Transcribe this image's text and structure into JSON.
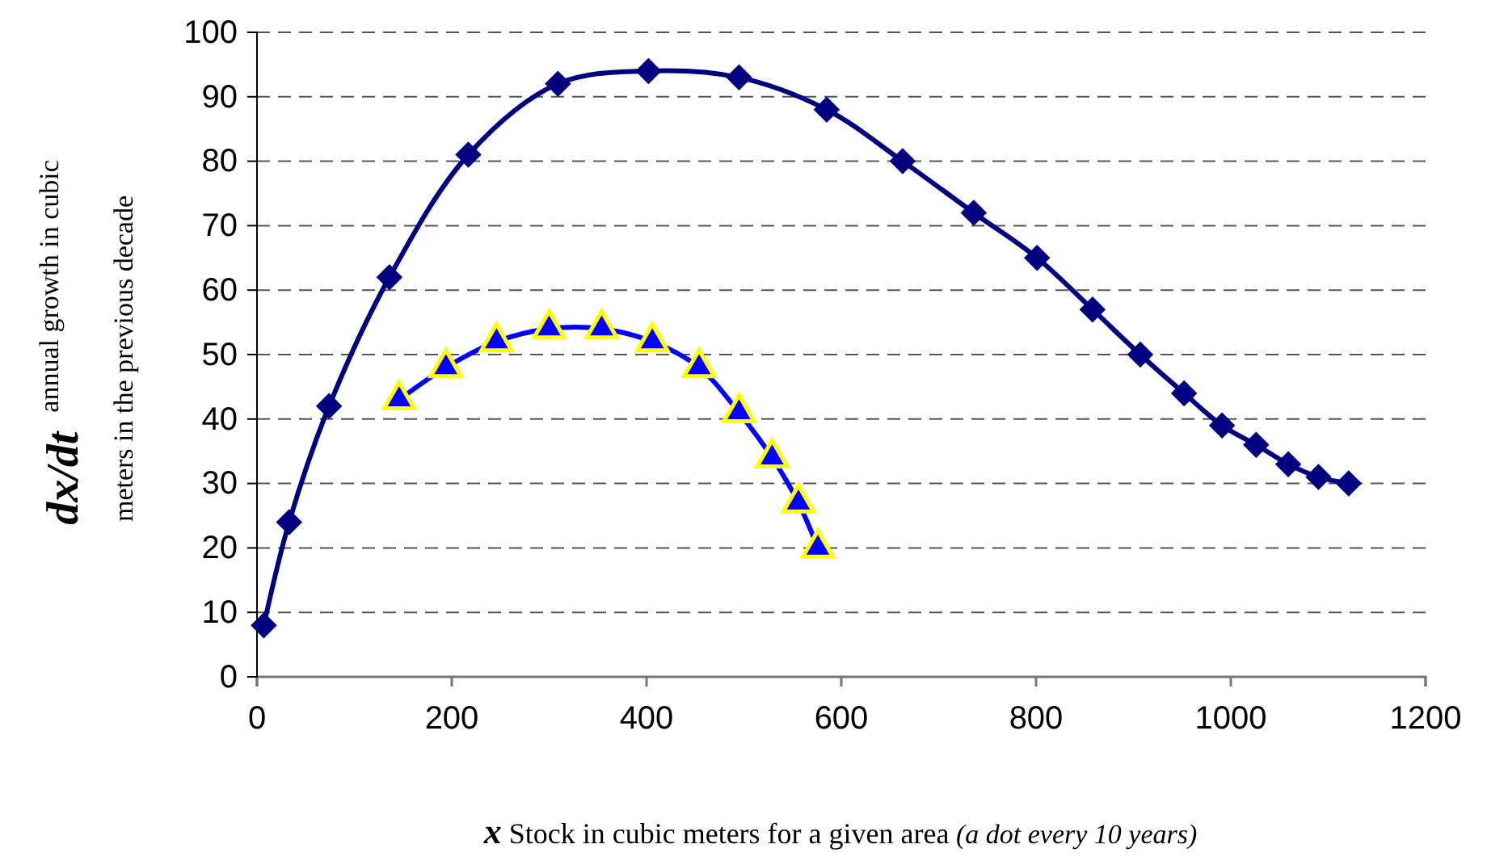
{
  "chart_data": {
    "type": "line",
    "xlabel": "x  Stock in cubic meters for a given area",
    "ylabel": "dx/dt  annual growth in cubic meters in the previous decade",
    "annotations": [
      "(a dot every 10 years)"
    ],
    "xlim": [
      0,
      1200
    ],
    "xticks": [
      0,
      200,
      400,
      600,
      800,
      1000,
      1200
    ],
    "ylim": [
      0,
      100
    ],
    "yticks": [
      0,
      10,
      20,
      30,
      40,
      50,
      60,
      70,
      80,
      90,
      100
    ],
    "grid": "y",
    "series": [
      {
        "color": "#000080",
        "marker": "diamond",
        "x": [
          7,
          33,
          74,
          136,
          217,
          309,
          402,
          495,
          585,
          663,
          736,
          801,
          858,
          907,
          952,
          991,
          1026,
          1059,
          1090,
          1121
        ],
        "values": [
          8,
          24,
          42,
          62,
          81,
          92,
          94,
          93,
          88,
          80,
          72,
          65,
          57,
          50,
          44,
          39,
          36,
          33,
          31,
          30
        ]
      },
      {
        "color": "#0000ff",
        "marker": "triangle",
        "x": [
          146,
          194,
          246,
          300,
          354,
          406,
          454,
          495,
          529,
          556,
          576
        ],
        "values": [
          43,
          48,
          52,
          54,
          54,
          52,
          48,
          41,
          34,
          27,
          20
        ]
      }
    ]
  }
}
